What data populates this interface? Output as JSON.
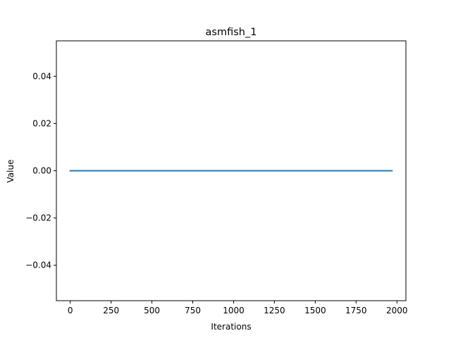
{
  "chart_data": {
    "type": "line",
    "title": "asmfish_1",
    "xlabel": "Iterations",
    "ylabel": "Value",
    "xlim": [
      -85,
      2055
    ],
    "ylim": [
      -0.055,
      0.055
    ],
    "x_ticks": [
      0,
      250,
      500,
      750,
      1000,
      1250,
      1500,
      1750,
      2000
    ],
    "x_tick_labels": [
      "0",
      "250",
      "500",
      "750",
      "1000",
      "1250",
      "1500",
      "1750",
      "2000"
    ],
    "y_ticks": [
      -0.04,
      -0.02,
      0.0,
      0.02,
      0.04
    ],
    "y_tick_labels": [
      "−0.04",
      "−0.02",
      "0.00",
      "0.02",
      "0.04"
    ],
    "grid": false,
    "series": [
      {
        "color": "#1f77b4",
        "x": [
          0,
          1970
        ],
        "y": [
          0.0,
          0.0
        ]
      }
    ]
  }
}
